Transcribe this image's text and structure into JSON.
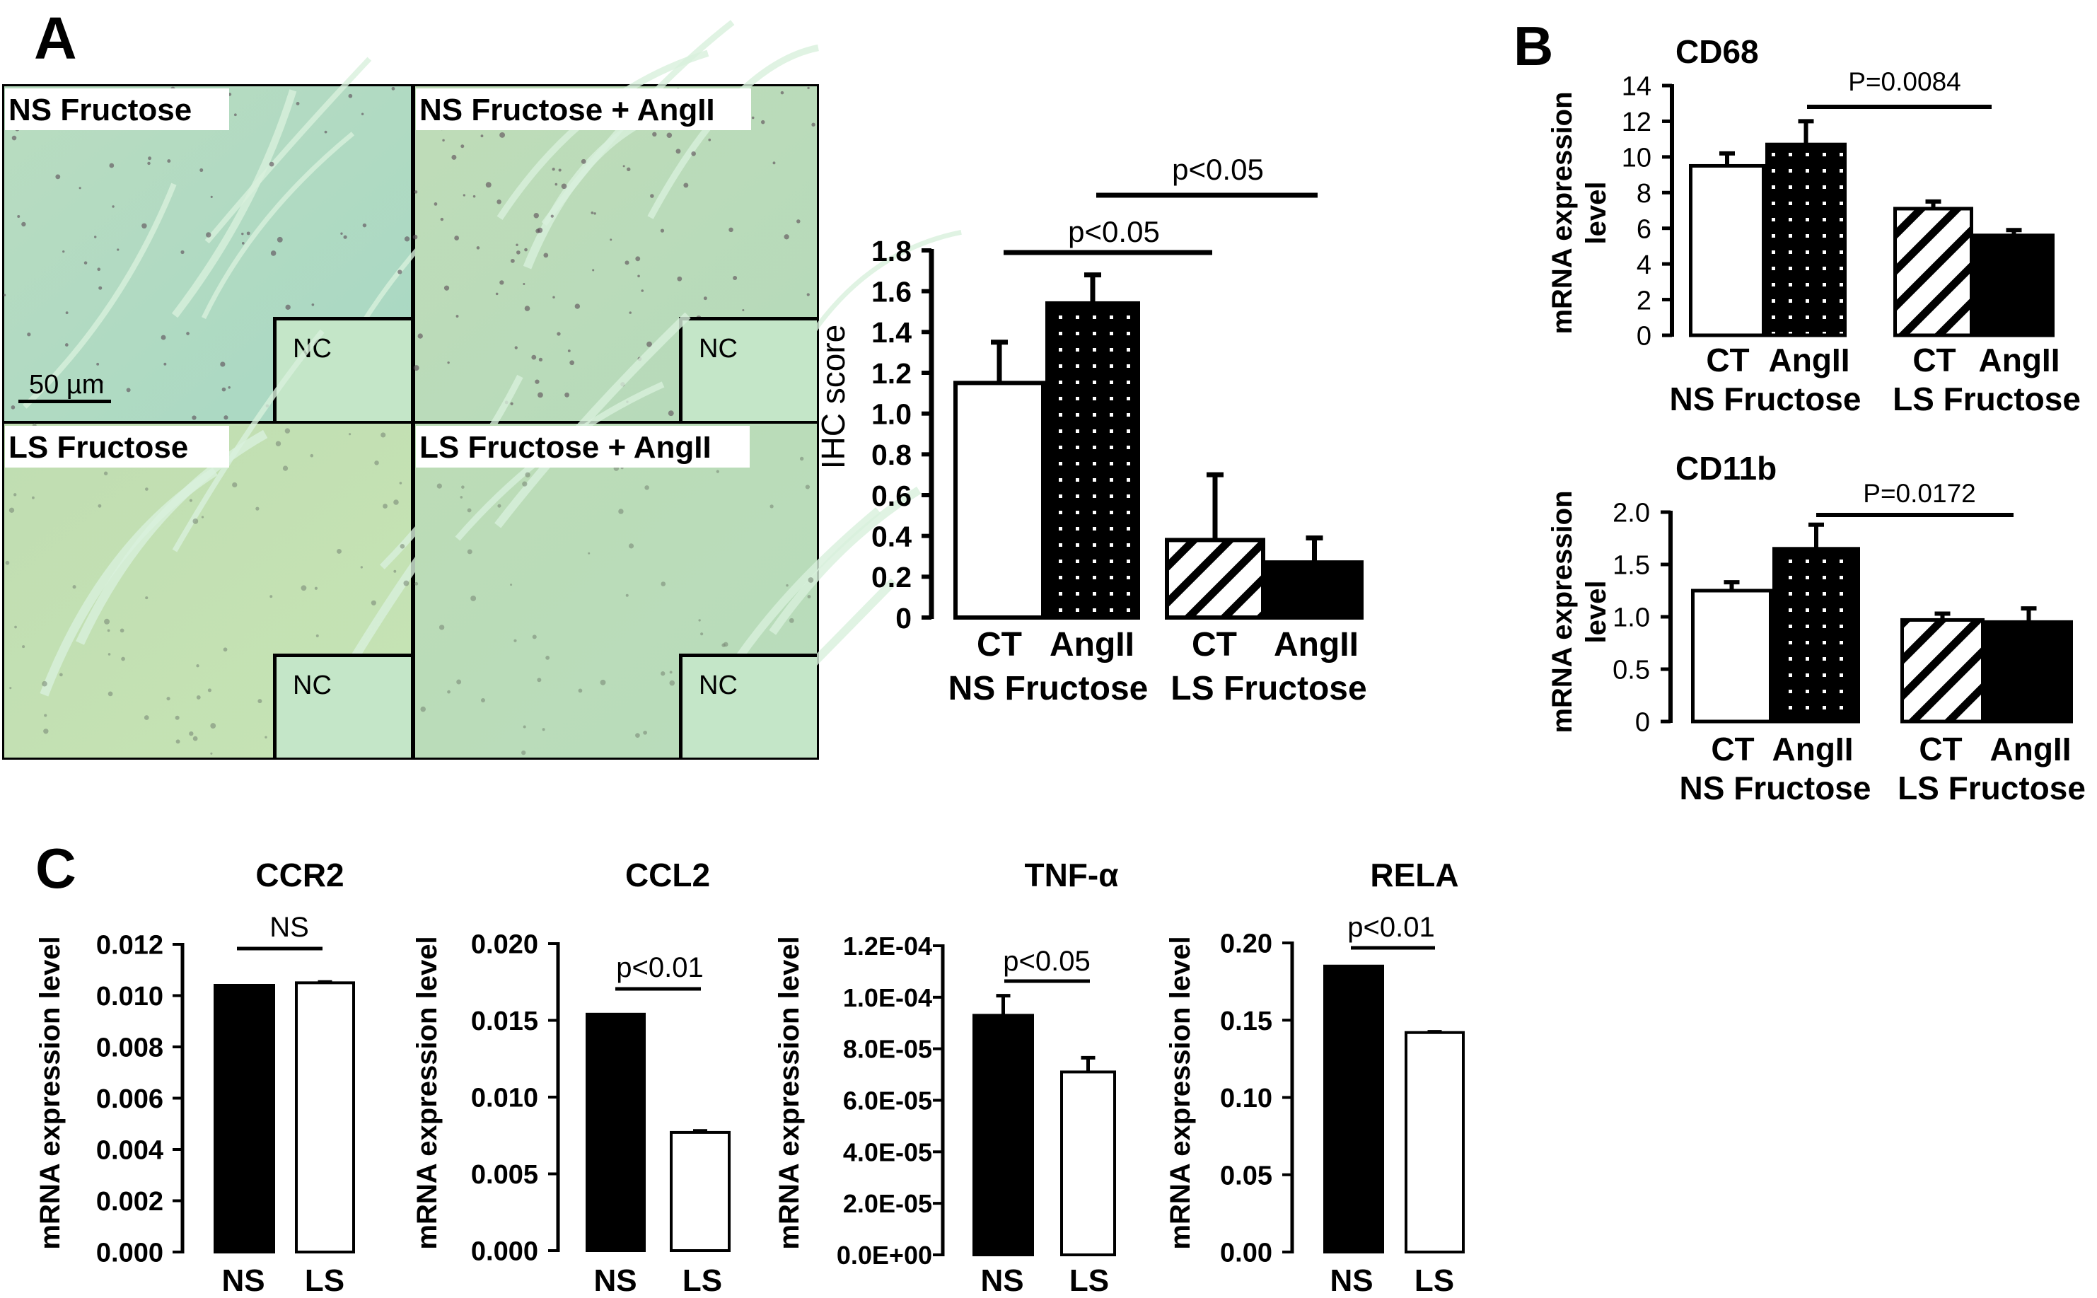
{
  "panel_letters": {
    "a": "A",
    "b": "B",
    "c": "C"
  },
  "micrographs": {
    "scale_bar": "50 µm",
    "panels": [
      {
        "label": "NS Fructose",
        "inset": "NC"
      },
      {
        "label": "NS Fructose + AngII",
        "inset": "NC"
      },
      {
        "label": "LS Fructose",
        "inset": "NC"
      },
      {
        "label": "LS Fructose + AngII",
        "inset": "NC"
      }
    ]
  },
  "chart_data": [
    {
      "panel": "A",
      "type": "bar",
      "title": "",
      "ylabel": [
        "IHC score"
      ],
      "ylim": [
        0,
        1.8
      ],
      "yticks": [
        0,
        0.2,
        0.4,
        0.6,
        0.8,
        1.0,
        1.2,
        1.4,
        1.6,
        1.8
      ],
      "ytick_labels": [
        "0",
        "0.2",
        "0.4",
        "0.6",
        "0.8",
        "1.0",
        "1.2",
        "1.4",
        "1.6",
        "1.8"
      ],
      "categories": [
        "CT",
        "AngII",
        "CT",
        "AngII"
      ],
      "groups": [
        "NS Fructose",
        "LS Fructose"
      ],
      "values": [
        1.15,
        1.54,
        0.38,
        0.27
      ],
      "errors": [
        0.2,
        0.14,
        0.32,
        0.12
      ],
      "fills": [
        "white",
        "dots",
        "hatch",
        "black"
      ],
      "significance": [
        {
          "label": "p<0.05"
        },
        {
          "label": "p<0.05"
        }
      ]
    },
    {
      "panel": "B",
      "type": "bar",
      "title": "CD68",
      "ylabel": [
        "mRNA expression",
        "level"
      ],
      "ylim": [
        0,
        14
      ],
      "yticks": [
        0,
        2,
        4,
        6,
        8,
        10,
        12,
        14
      ],
      "ytick_labels": [
        "0",
        "2",
        "4",
        "6",
        "8",
        "10",
        "12",
        "14"
      ],
      "categories": [
        "CT",
        "AngII",
        "CT",
        "AngII"
      ],
      "groups": [
        "NS Fructose",
        "LS Fructose"
      ],
      "values": [
        9.5,
        10.7,
        7.1,
        5.6
      ],
      "errors": [
        0.7,
        1.3,
        0.4,
        0.3
      ],
      "fills": [
        "white",
        "dots",
        "hatch",
        "black"
      ],
      "significance": [
        {
          "label": "P=0.0084"
        }
      ]
    },
    {
      "panel": "B",
      "type": "bar",
      "title": "CD11b",
      "ylabel": [
        "mRNA expression",
        "level"
      ],
      "ylim": [
        0,
        2.0
      ],
      "yticks": [
        0,
        0.5,
        1.0,
        1.5,
        2.0
      ],
      "ytick_labels": [
        "0",
        "0.5",
        "1.0",
        "1.5",
        "2.0"
      ],
      "categories": [
        "CT",
        "AngII",
        "CT",
        "AngII"
      ],
      "groups": [
        "NS Fructose",
        "LS Fructose"
      ],
      "values": [
        1.25,
        1.65,
        0.97,
        0.95
      ],
      "errors": [
        0.08,
        0.23,
        0.06,
        0.13
      ],
      "fills": [
        "white",
        "dots",
        "hatch",
        "black"
      ],
      "significance": [
        {
          "label": "P=0.0172"
        }
      ]
    },
    {
      "panel": "C",
      "type": "bar",
      "title": "CCR2",
      "ylabel": [
        "mRNA expression level"
      ],
      "ylim": [
        0,
        0.012
      ],
      "yticks": [
        0,
        0.002,
        0.004,
        0.006,
        0.008,
        0.01,
        0.012
      ],
      "ytick_labels": [
        "0.000",
        "0.002",
        "0.004",
        "0.006",
        "0.008",
        "0.010",
        "0.012"
      ],
      "categories": [
        "NS",
        "LS"
      ],
      "groups": [],
      "values": [
        0.0104,
        0.0105
      ],
      "errors": [
        0,
        3e-05
      ],
      "fills": [
        "black",
        "white"
      ],
      "significance": [
        {
          "label": "NS"
        }
      ]
    },
    {
      "panel": "C",
      "type": "bar",
      "title": "CCL2",
      "ylabel": [
        "mRNA expression level"
      ],
      "ylim": [
        0,
        0.02
      ],
      "yticks": [
        0,
        0.005,
        0.01,
        0.015,
        0.02
      ],
      "ytick_labels": [
        "0.000",
        "0.005",
        "0.010",
        "0.015",
        "0.020"
      ],
      "categories": [
        "NS",
        "LS"
      ],
      "groups": [],
      "values": [
        0.0154,
        0.0077
      ],
      "errors": [
        0,
        0.0001
      ],
      "fills": [
        "black",
        "white"
      ],
      "significance": [
        {
          "label": "p<0.01"
        }
      ]
    },
    {
      "panel": "C",
      "type": "bar",
      "title": "TNF-α",
      "ylabel": [
        "mRNA expression level"
      ],
      "ylim": [
        0,
        0.00012
      ],
      "yticks": [
        0,
        2e-05,
        4e-05,
        6e-05,
        8e-05,
        0.0001,
        0.00012
      ],
      "ytick_labels": [
        "0.0E+00",
        "2.0E-05",
        "4.0E-05",
        "6.0E-05",
        "8.0E-05",
        "1.0E-04",
        "1.2E-04"
      ],
      "categories": [
        "NS",
        "LS"
      ],
      "groups": [],
      "values": [
        9.3e-05,
        7.1e-05
      ],
      "errors": [
        7.6e-06,
        5.5e-06
      ],
      "fills": [
        "black",
        "white"
      ],
      "significance": [
        {
          "label": "p<0.05"
        }
      ]
    },
    {
      "panel": "C",
      "type": "bar",
      "title": "RELA",
      "ylabel": [
        "mRNA expression level"
      ],
      "ylim": [
        0,
        0.2
      ],
      "yticks": [
        0,
        0.05,
        0.1,
        0.15,
        0.2
      ],
      "ytick_labels": [
        "0.00",
        "0.05",
        "0.10",
        "0.15",
        "0.20"
      ],
      "categories": [
        "NS",
        "LS"
      ],
      "groups": [],
      "values": [
        0.185,
        0.142
      ],
      "errors": [
        0,
        0.0005
      ],
      "fills": [
        "black",
        "white"
      ],
      "significance": [
        {
          "label": "p<0.01"
        }
      ]
    }
  ]
}
